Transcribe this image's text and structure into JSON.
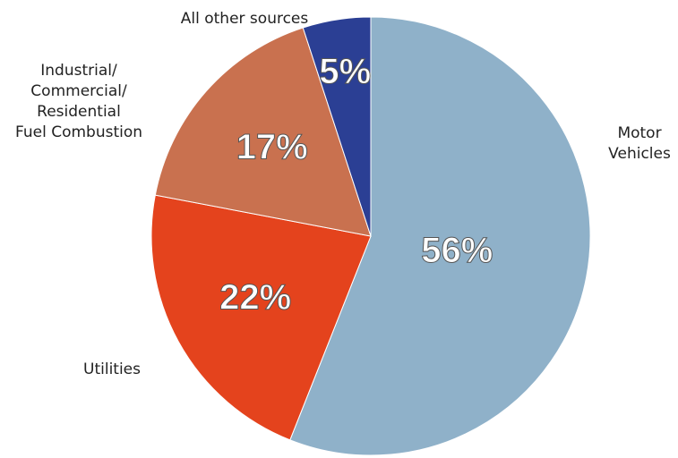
{
  "chart_data": {
    "type": "pie",
    "categories": [
      "Motor\nVehicles",
      "Utilities",
      "Industrial/\nCommercial/\nResidential\nFuel Combustion",
      "All other sources"
    ],
    "values": [
      56,
      22,
      17,
      5
    ],
    "value_labels": [
      "56%",
      "22%",
      "17%",
      "5%"
    ],
    "colors": [
      "#8fb1c9",
      "#e4431d",
      "#c9714f",
      "#2b3f94"
    ]
  }
}
